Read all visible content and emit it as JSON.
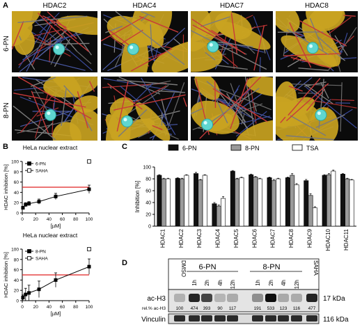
{
  "panelA": {
    "letter": "A",
    "columns": [
      "HDAC2",
      "HDAC4",
      "HDAC7",
      "HDAC8"
    ],
    "rows": [
      "6-PN",
      "8-PN"
    ]
  },
  "panelB": {
    "letter": "B"
  },
  "panelC": {
    "letter": "C"
  },
  "panelD": {
    "letter": "D",
    "lanes": [
      "DMSO",
      "1h",
      "2h",
      "4h",
      "12h",
      "1h",
      "2h",
      "4h",
      "12h",
      "SAHA"
    ],
    "groups": [
      "6-PN",
      "8-PN"
    ],
    "rows": [
      "ac-H3",
      "Vinculin"
    ],
    "quant_label": "rel.% ac-H3",
    "quant_values": [
      "100",
      "474",
      "393",
      "90",
      "117",
      "191",
      "533",
      "123",
      "116",
      "477"
    ],
    "sizes": [
      "17 kDa",
      "116 kDa"
    ]
  },
  "colors": {
    "surface": "#c9a321",
    "background": "#0b0b0b",
    "ligand": "#5fd6d0",
    "refline": "#e02020"
  },
  "chart_data": [
    {
      "type": "line",
      "title": "HeLa nuclear extract",
      "xlabel": "[µM]",
      "ylabel": "HDAC inhibition [%]",
      "xlim": [
        0,
        100
      ],
      "ylim": [
        0,
        100
      ],
      "xticks": [
        0,
        20,
        40,
        60,
        80,
        100
      ],
      "yticks": [
        0,
        20,
        40,
        60,
        80,
        100
      ],
      "reference_line": 50,
      "series": [
        {
          "name": "6-PN",
          "x": [
            1,
            5,
            10,
            25,
            50,
            100
          ],
          "y": [
            10,
            16,
            18,
            22,
            32,
            46
          ],
          "err": [
            3,
            4,
            4,
            5,
            6,
            8
          ]
        },
        {
          "name": "SAHA",
          "x": [
            100
          ],
          "y": [
            100
          ]
        }
      ]
    },
    {
      "type": "line",
      "title": "HeLa nuclear extract",
      "xlabel": "[µM]",
      "ylabel": "HDAC inhibition [%]",
      "xlim": [
        0,
        100
      ],
      "ylim": [
        0,
        100
      ],
      "xticks": [
        0,
        20,
        40,
        60,
        80,
        100
      ],
      "yticks": [
        0,
        20,
        40,
        60,
        80,
        100
      ],
      "reference_line": 50,
      "series": [
        {
          "name": "8-PN",
          "x": [
            1,
            5,
            10,
            25,
            50,
            100
          ],
          "y": [
            6,
            12,
            15,
            22,
            40,
            66
          ],
          "err": [
            5,
            12,
            15,
            16,
            14,
            15
          ]
        },
        {
          "name": "SAHA",
          "x": [
            100
          ],
          "y": [
            100
          ]
        }
      ]
    },
    {
      "type": "bar",
      "ylabel": "Inhibition [%]",
      "ylim": [
        0,
        100
      ],
      "yticks": [
        0,
        20,
        40,
        60,
        80,
        100
      ],
      "categories": [
        "HDAC1",
        "HDAC2",
        "HDAC3",
        "HDAC4",
        "HDAC5",
        "HDAC6",
        "HDAC7",
        "HDAC8",
        "HDAC9",
        "HDAC10",
        "HDAC11"
      ],
      "series": [
        {
          "name": "6-PN",
          "color": "#111111",
          "values": [
            86,
            81,
            89,
            38,
            93,
            87,
            82,
            82,
            77,
            86,
            88
          ],
          "err": [
            1,
            1,
            2,
            2,
            1,
            1,
            1,
            1,
            2,
            1,
            1
          ]
        },
        {
          "name": "8-PN",
          "color": "#9a9a9a",
          "values": [
            80,
            80,
            78,
            34,
            80,
            83,
            77,
            86,
            52,
            87,
            80
          ],
          "err": [
            1,
            1,
            1,
            2,
            1,
            1,
            2,
            3,
            3,
            2,
            1
          ]
        },
        {
          "name": "TSA",
          "color": "#ffffff",
          "values": [
            80,
            86,
            86,
            47,
            82,
            80,
            80,
            70,
            31,
            93,
            78
          ],
          "err": [
            1,
            1,
            1,
            3,
            1,
            1,
            1,
            2,
            2,
            2,
            1
          ]
        }
      ]
    }
  ]
}
